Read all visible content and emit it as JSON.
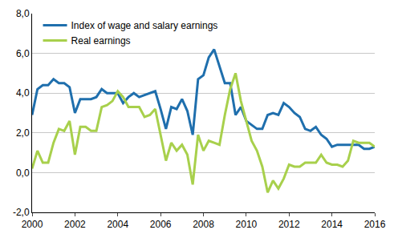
{
  "chart_data": {
    "type": "line",
    "x": [
      2000,
      2000.25,
      2000.5,
      2000.75,
      2001,
      2001.25,
      2001.5,
      2001.75,
      2002,
      2002.25,
      2002.5,
      2002.75,
      2003,
      2003.25,
      2003.5,
      2003.75,
      2004,
      2004.25,
      2004.5,
      2004.75,
      2005,
      2005.25,
      2005.5,
      2005.75,
      2006,
      2006.25,
      2006.5,
      2006.75,
      2007,
      2007.25,
      2007.5,
      2007.75,
      2008,
      2008.25,
      2008.5,
      2008.75,
      2009,
      2009.25,
      2009.5,
      2009.75,
      2010,
      2010.25,
      2010.5,
      2010.75,
      2011,
      2011.25,
      2011.5,
      2011.75,
      2012,
      2012.25,
      2012.5,
      2012.75,
      2013,
      2013.25,
      2013.5,
      2013.75,
      2014,
      2014.25,
      2014.5,
      2014.75,
      2015,
      2015.25,
      2015.5,
      2015.75,
      2016
    ],
    "series": [
      {
        "name": "Index of wage and salary earnings",
        "color": "#1f6fad",
        "values": [
          2.9,
          4.2,
          4.4,
          4.4,
          4.7,
          4.5,
          4.5,
          4.3,
          3.0,
          3.7,
          3.7,
          3.7,
          3.8,
          4.2,
          4.0,
          4.0,
          4.0,
          3.5,
          3.8,
          4.0,
          3.8,
          3.9,
          4.0,
          4.1,
          3.2,
          2.2,
          3.3,
          3.2,
          3.7,
          3.1,
          1.9,
          4.7,
          4.9,
          5.8,
          6.2,
          5.3,
          4.5,
          4.5,
          2.9,
          3.3,
          2.6,
          2.4,
          2.2,
          2.2,
          2.9,
          3.0,
          2.9,
          3.5,
          3.3,
          3.0,
          2.8,
          2.2,
          2.1,
          2.3,
          1.9,
          1.7,
          1.3,
          1.4,
          1.4,
          1.4,
          1.4,
          1.4,
          1.2,
          1.2,
          1.3
        ]
      },
      {
        "name": "Real earnings",
        "color": "#a8d04c",
        "values": [
          0.2,
          1.1,
          0.5,
          0.5,
          1.5,
          2.2,
          2.1,
          2.6,
          0.9,
          2.3,
          2.3,
          2.1,
          2.1,
          3.3,
          3.4,
          3.6,
          4.1,
          3.8,
          3.3,
          3.3,
          3.3,
          2.8,
          2.9,
          3.2,
          1.9,
          0.6,
          1.5,
          1.1,
          1.4,
          0.9,
          -0.6,
          1.9,
          1.1,
          1.6,
          1.5,
          1.4,
          2.9,
          4.2,
          5.0,
          3.6,
          2.6,
          1.6,
          1.1,
          0.3,
          -1.0,
          -0.4,
          -0.8,
          -0.3,
          0.4,
          0.3,
          0.3,
          0.5,
          0.5,
          0.5,
          0.9,
          0.5,
          0.4,
          0.4,
          0.3,
          0.6,
          1.6,
          1.5,
          1.5,
          1.5,
          1.3
        ]
      }
    ],
    "xlim": [
      2000,
      2016
    ],
    "xticks": [
      2000,
      2002,
      2004,
      2006,
      2008,
      2010,
      2012,
      2014,
      2016
    ],
    "ylim": [
      -2,
      8
    ],
    "yticks": [
      {
        "value": -2,
        "label": "-2,0"
      },
      {
        "value": 0,
        "label": "0,0"
      },
      {
        "value": 2,
        "label": "2,0"
      },
      {
        "value": 4,
        "label": "4,0"
      },
      {
        "value": 6,
        "label": "6,0"
      },
      {
        "value": 8,
        "label": "8,0"
      }
    ],
    "grid": true,
    "legend": "upper left"
  }
}
